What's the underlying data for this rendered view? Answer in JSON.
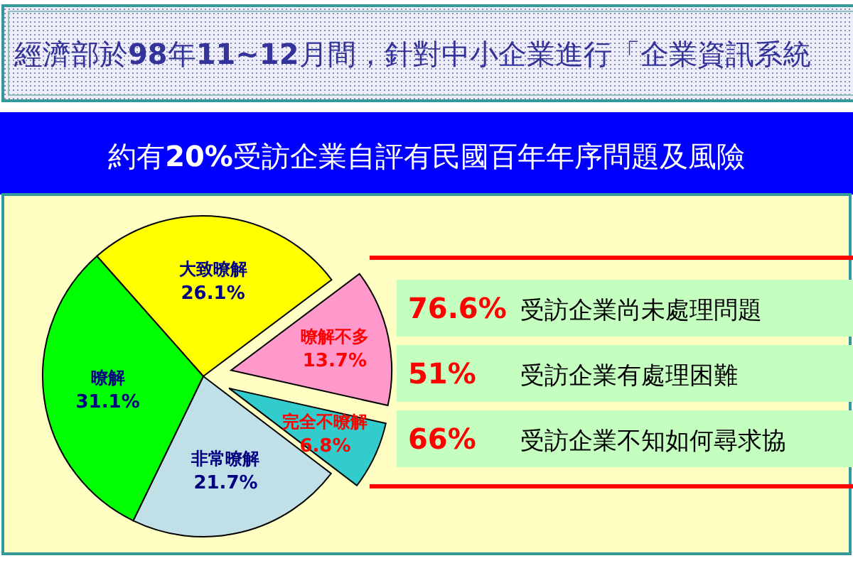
{
  "chart_data": {
    "type": "pie",
    "title": "經濟部於98年11~12月間，針對中小企業進行「企業資訊系統",
    "subtitle": "約有20%受訪企業自評有民國百年年序問題及風險",
    "categories": [
      "大致暸解",
      "暸解不多",
      "完全不暸解",
      "非常暸解",
      "暸解"
    ],
    "values": [
      26.1,
      13.7,
      6.8,
      21.7,
      31.1
    ],
    "value_labels": [
      "26.1%",
      "13.7%",
      "6.8%",
      "21.7%",
      "31.1%"
    ],
    "colors": [
      "#ffff00",
      "#ff99cc",
      "#33cccc",
      "#c0dfe6",
      "#00ff00"
    ],
    "annotations": [
      "76.6% 受訪企業尚未處理問題",
      "51% 受訪企業有處理困難",
      "66% 受訪企業不知如何尋求協"
    ]
  }
}
